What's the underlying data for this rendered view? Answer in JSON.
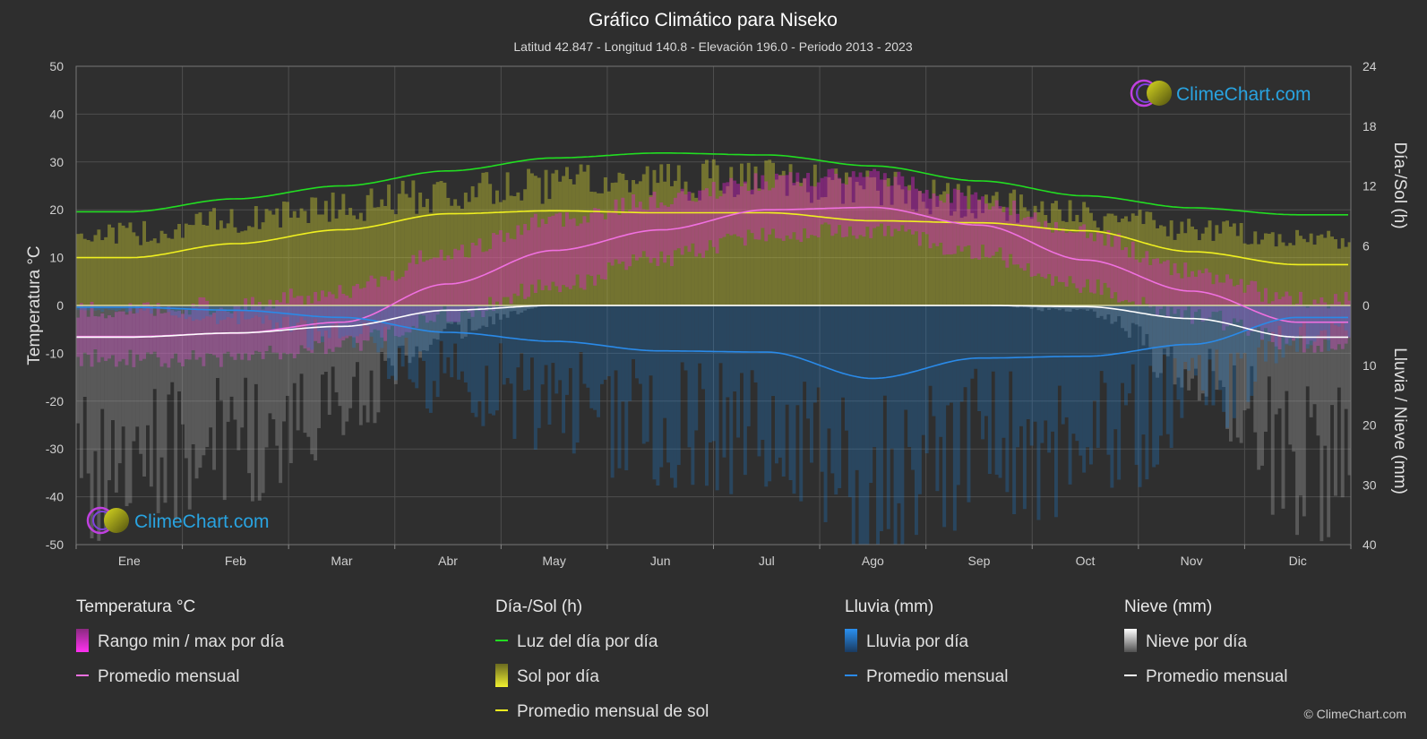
{
  "title": "Gráfico Climático para Niseko",
  "subtitle": "Latitud 42.847 - Longitud 140.8 - Elevación 196.0 - Periodo 2013 - 2023",
  "brand": "ClimeChart.com",
  "copyright": "© ClimeChart.com",
  "colors": {
    "background": "#2e2e2e",
    "temp_range": "#e020d0",
    "temp_avg": "#f070e0",
    "daylight": "#22dd22",
    "sunshine": "#c8c832",
    "sunshine_avg": "#f0f020",
    "rain": "#1e78c8",
    "rain_avg": "#2a8ae8",
    "snow": "#aaaaaa",
    "snow_avg": "#ffffff"
  },
  "chart_data": {
    "type": "area",
    "months": [
      "Ene",
      "Feb",
      "Mar",
      "Abr",
      "May",
      "Jun",
      "Jul",
      "Ago",
      "Sep",
      "Oct",
      "Nov",
      "Dic"
    ],
    "y_left": {
      "label": "Temperatura °C",
      "ylim": [
        -50,
        50
      ],
      "ticks": [
        "50",
        "40",
        "30",
        "20",
        "10",
        "0",
        "-10",
        "-20",
        "-30",
        "-40",
        "-50"
      ]
    },
    "y_right_top": {
      "label": "Día-/Sol (h)",
      "ylim": [
        0,
        24
      ],
      "ticks": [
        "24",
        "18",
        "12",
        "6",
        "0"
      ]
    },
    "y_right_bottom": {
      "label": "Lluvia / Nieve (mm)",
      "ylim": [
        0,
        40
      ],
      "ticks": [
        "10",
        "20",
        "30",
        "40"
      ]
    },
    "grid": true,
    "series": {
      "temp_avg_c": [
        -6.5,
        -5.8,
        -3.5,
        4.5,
        11.5,
        15.8,
        20.0,
        20.5,
        16.8,
        9.5,
        3.0,
        -3.5
      ],
      "temp_min_c": [
        -11,
        -11,
        -8,
        -2,
        4,
        10,
        15,
        16,
        11,
        4,
        -2,
        -8
      ],
      "temp_max_c": [
        -1,
        0,
        3,
        11,
        18,
        22,
        26,
        27,
        22,
        15,
        7,
        1
      ],
      "daylight_h": [
        9.4,
        10.7,
        12.0,
        13.5,
        14.8,
        15.3,
        15.1,
        14.0,
        12.5,
        11.0,
        9.8,
        9.1
      ],
      "sunshine_daily_h": [
        8.0,
        9.5,
        11.0,
        12.5,
        13.5,
        14.0,
        14.0,
        13.0,
        11.5,
        10.0,
        8.5,
        7.5
      ],
      "sunshine_avg_h": [
        4.8,
        6.2,
        7.6,
        9.2,
        9.5,
        9.3,
        9.3,
        8.5,
        8.3,
        7.5,
        5.4,
        4.1
      ],
      "rain_avg_mm": [
        0.3,
        0.8,
        2.0,
        4.5,
        6.0,
        7.6,
        7.8,
        12.2,
        8.8,
        8.5,
        6.5,
        2.0
      ],
      "snow_avg_mm": [
        5.3,
        4.6,
        3.5,
        0.8,
        0.0,
        0.0,
        0.0,
        0.0,
        0.0,
        0.2,
        2.2,
        5.3
      ]
    }
  },
  "legend": {
    "temperature": {
      "header": "Temperatura °C",
      "items": [
        "Rango min / max por día",
        "Promedio mensual"
      ]
    },
    "sun": {
      "header": "Día-/Sol (h)",
      "items": [
        "Luz del día por día",
        "Sol por día",
        "Promedio mensual de sol"
      ]
    },
    "rain": {
      "header": "Lluvia (mm)",
      "items": [
        "Lluvia por día",
        "Promedio mensual"
      ]
    },
    "snow": {
      "header": "Nieve (mm)",
      "items": [
        "Nieve por día",
        "Promedio mensual"
      ]
    }
  }
}
